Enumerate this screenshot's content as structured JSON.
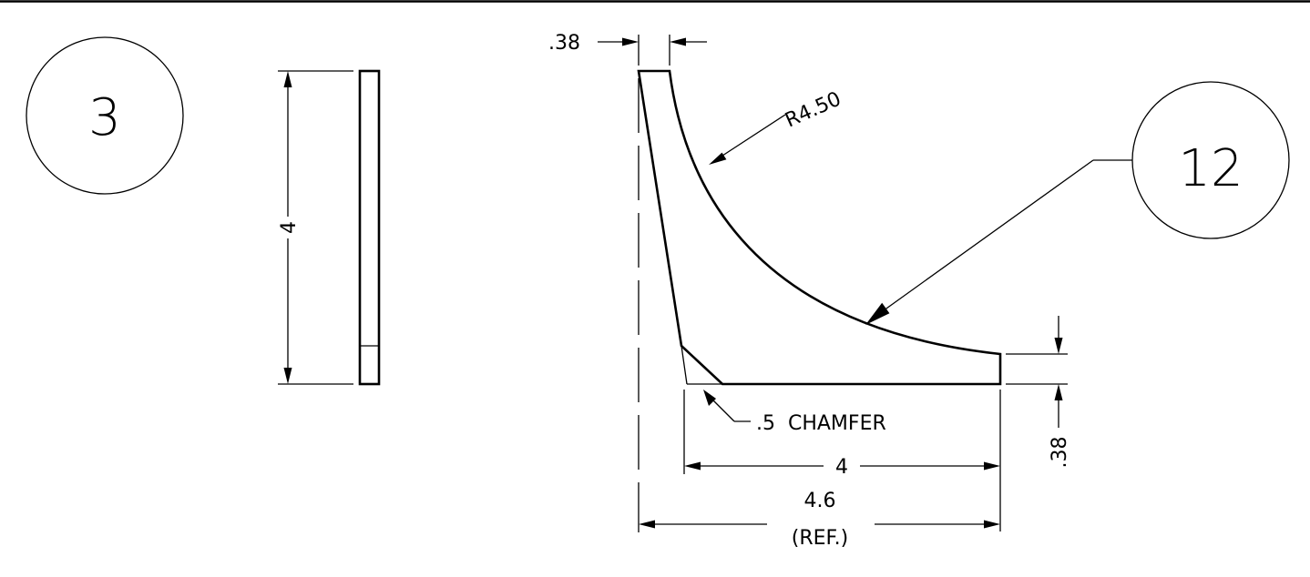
{
  "balloons": {
    "view_number": "3",
    "part_number": "12"
  },
  "dimensions": {
    "height": "4",
    "thickness_top": ".38",
    "radius": "R4.50",
    "chamfer": ".5  CHAMFER",
    "base_length": "4",
    "overall_length": "4.6",
    "overall_length_ref": "(REF.)",
    "thickness_right": ".38"
  },
  "colors": {
    "line": "#000000",
    "background": "#ffffff"
  }
}
